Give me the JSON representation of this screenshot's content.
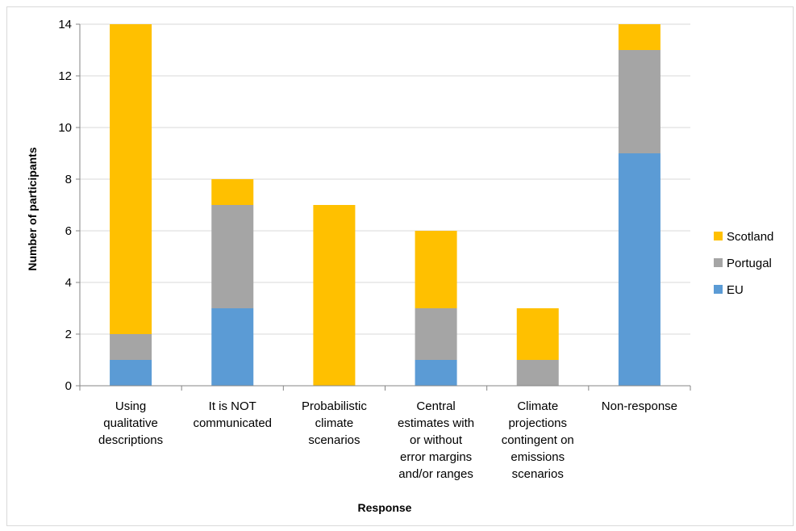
{
  "chart_data": {
    "type": "bar",
    "stacked": true,
    "title": "",
    "xlabel": "Response",
    "ylabel": "Number of participants",
    "ylim": [
      0,
      14
    ],
    "yticks": [
      0,
      2,
      4,
      6,
      8,
      10,
      12,
      14
    ],
    "grid": true,
    "legend_position": "right",
    "categories": [
      [
        "Using",
        "qualitative",
        "descriptions"
      ],
      [
        "It is NOT",
        "communicated"
      ],
      [
        "Probabilistic",
        "climate",
        "scenarios"
      ],
      [
        "Central",
        "estimates with",
        "or without",
        "error margins",
        "and/or ranges"
      ],
      [
        "Climate",
        "projections",
        "contingent on",
        "emissions",
        "scenarios"
      ],
      [
        "Non-response"
      ]
    ],
    "series": [
      {
        "name": "EU",
        "color": "#5b9bd5",
        "values": [
          1,
          3,
          0,
          1,
          0,
          9
        ]
      },
      {
        "name": "Portugal",
        "color": "#a5a5a5",
        "values": [
          1,
          4,
          0,
          2,
          1,
          4
        ]
      },
      {
        "name": "Scotland",
        "color": "#ffc000",
        "values": [
          12,
          1,
          7,
          3,
          2,
          1
        ]
      }
    ],
    "legend_order": [
      "Scotland",
      "Portugal",
      "EU"
    ]
  }
}
